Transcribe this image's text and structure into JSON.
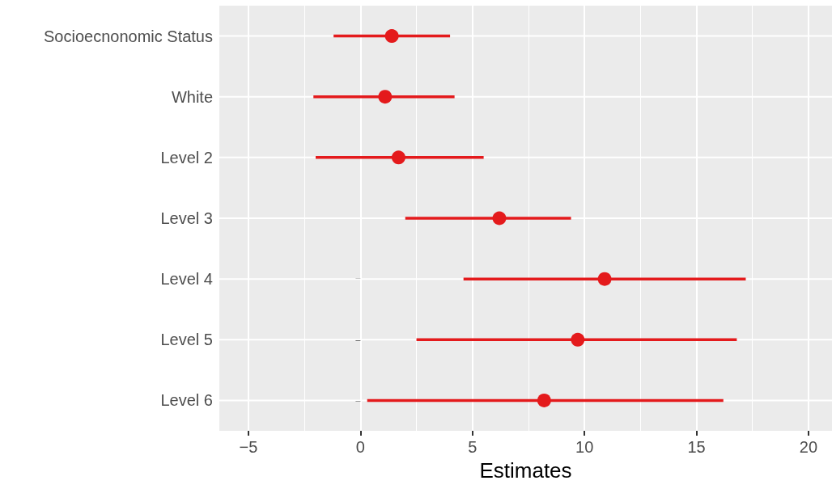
{
  "chart_data": {
    "type": "scatter",
    "orientation": "horizontal",
    "xlabel": "Estimates",
    "categories": [
      "Socioecnonomic Status",
      "White",
      "Level 2",
      "Level 3",
      "Level 4",
      "Level 5",
      "Level 6"
    ],
    "values": [
      1.4,
      1.1,
      1.7,
      6.2,
      10.9,
      9.7,
      8.2
    ],
    "errors": [
      [
        -1.2,
        4.0
      ],
      [
        -2.1,
        4.2
      ],
      [
        -2.0,
        5.5
      ],
      [
        2.0,
        9.4
      ],
      [
        4.6,
        17.2
      ],
      [
        2.5,
        16.8
      ],
      [
        0.3,
        16.2
      ]
    ],
    "color": "#e41a1c",
    "marker": "circle",
    "xlim": [
      -6.3,
      21.05
    ],
    "xticks": [
      {
        "value": -5,
        "label": "−5"
      },
      0,
      5,
      10,
      15,
      20
    ],
    "grid": true
  }
}
